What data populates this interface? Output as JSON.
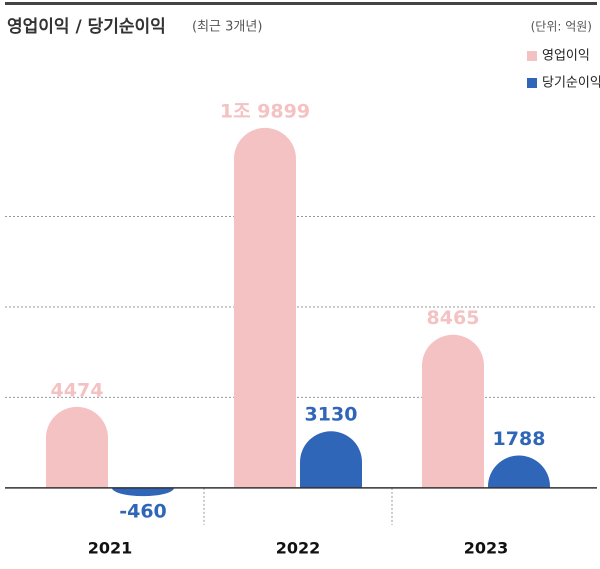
{
  "chart_data": {
    "type": "bar",
    "title": "영업이익 / 당기순이익",
    "subtitle": "(최근 3개년)",
    "unit_note": "(단위: 억원)",
    "categories": [
      "2021",
      "2022",
      "2023"
    ],
    "series": [
      {
        "name": "영업이익",
        "color": "#f4c2c2",
        "values": [
          4474,
          19899,
          8465
        ],
        "value_labels": [
          "4474",
          "1조 9899",
          "8465"
        ]
      },
      {
        "name": "당기순이익",
        "color": "#2f66b8",
        "values": [
          -460,
          3130,
          1788
        ]
      }
    ],
    "ylim": [
      -2000,
      21000
    ],
    "yticks": [
      5000,
      10000,
      15000
    ],
    "grid": true,
    "legend": "top-right"
  }
}
